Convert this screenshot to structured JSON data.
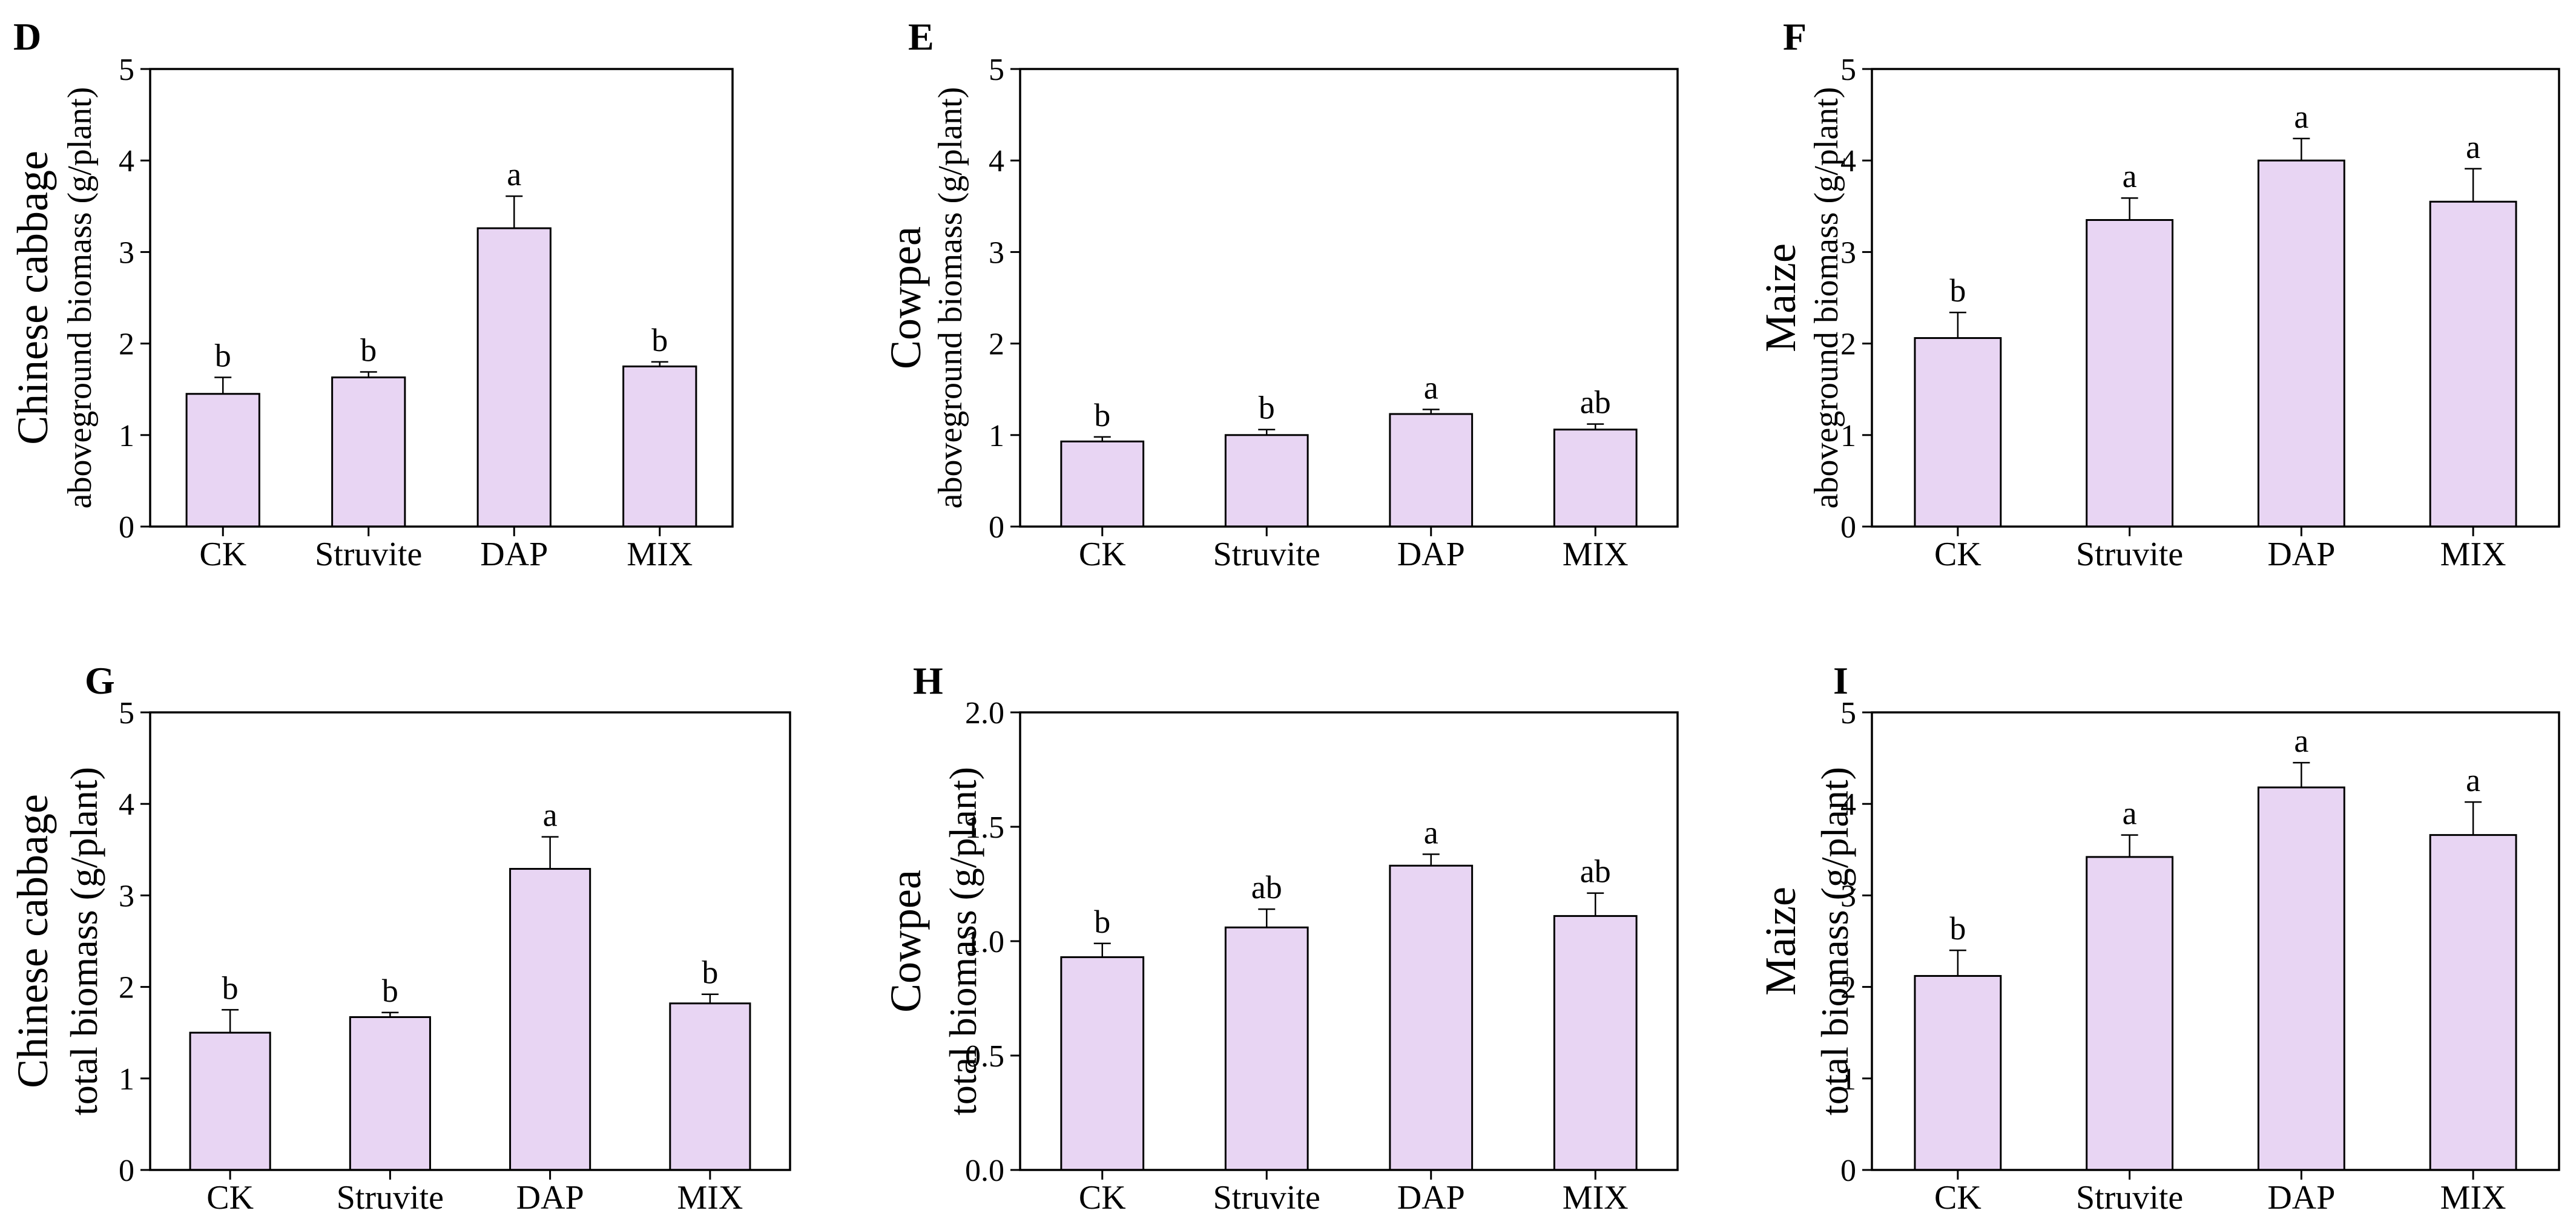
{
  "colors": {
    "bar_fill": "#e8d5f3",
    "stroke": "#000000",
    "background": "#ffffff"
  },
  "chart_data": [
    {
      "panel": "D",
      "type": "bar",
      "categories": [
        "CK",
        "Struvite",
        "DAP",
        "MIX"
      ],
      "values": [
        1.45,
        1.63,
        3.26,
        1.75
      ],
      "errors": [
        0.18,
        0.06,
        0.35,
        0.05
      ],
      "significance": [
        "b",
        "b",
        "a",
        "b"
      ],
      "ylabel_title": "Chinese cabbage",
      "ylabel": "aboveground biomass (g/plant)",
      "ylim": [
        0,
        5
      ],
      "yticks": [
        0,
        1,
        2,
        3,
        4,
        5
      ],
      "ytick_labels": [
        "0",
        "1",
        "2",
        "3",
        "4",
        "5"
      ]
    },
    {
      "panel": "E",
      "type": "bar",
      "categories": [
        "CK",
        "Struvite",
        "DAP",
        "MIX"
      ],
      "values": [
        0.93,
        1.0,
        1.23,
        1.06
      ],
      "errors": [
        0.05,
        0.06,
        0.05,
        0.06
      ],
      "significance": [
        "b",
        "b",
        "a",
        "ab"
      ],
      "ylabel_title": "Cowpea",
      "ylabel": "aboveground biomass (g/plant)",
      "ylim": [
        0,
        5
      ],
      "yticks": [
        0,
        1,
        2,
        3,
        4,
        5
      ],
      "ytick_labels": [
        "0",
        "1",
        "2",
        "3",
        "4",
        "5"
      ]
    },
    {
      "panel": "F",
      "type": "bar",
      "categories": [
        "CK",
        "Struvite",
        "DAP",
        "MIX"
      ],
      "values": [
        2.06,
        3.35,
        4.0,
        3.55
      ],
      "errors": [
        0.28,
        0.24,
        0.24,
        0.36
      ],
      "significance": [
        "b",
        "a",
        "a",
        "a"
      ],
      "ylabel_title": "Maize",
      "ylabel": "aboveground biomass (g/plant)",
      "ylim": [
        0,
        5
      ],
      "yticks": [
        0,
        1,
        2,
        3,
        4,
        5
      ],
      "ytick_labels": [
        "0",
        "1",
        "2",
        "3",
        "4",
        "5"
      ]
    },
    {
      "panel": "G",
      "type": "bar",
      "categories": [
        "CK",
        "Struvite",
        "DAP",
        "MIX"
      ],
      "values": [
        1.5,
        1.67,
        3.29,
        1.82
      ],
      "errors": [
        0.25,
        0.05,
        0.35,
        0.1
      ],
      "significance": [
        "b",
        "b",
        "a",
        "b"
      ],
      "ylabel_title": "Chinese cabbage",
      "ylabel": "total biomass (g/plant)",
      "ylim": [
        0,
        5
      ],
      "yticks": [
        0,
        1,
        2,
        3,
        4,
        5
      ],
      "ytick_labels": [
        "0",
        "1",
        "2",
        "3",
        "4",
        "5"
      ]
    },
    {
      "panel": "H",
      "type": "bar",
      "categories": [
        "CK",
        "Struvite",
        "DAP",
        "MIX"
      ],
      "values": [
        0.93,
        1.06,
        1.33,
        1.11
      ],
      "errors": [
        0.06,
        0.08,
        0.05,
        0.1
      ],
      "significance": [
        "b",
        "ab",
        "a",
        "ab"
      ],
      "ylabel_title": "Cowpea",
      "ylabel": "total biomass (g/plant)",
      "ylim": [
        0,
        2
      ],
      "yticks": [
        0,
        0.5,
        1,
        1.5,
        2
      ],
      "ytick_labels": [
        "0.0",
        "0.5",
        "1.0",
        "1.5",
        "2.0"
      ]
    },
    {
      "panel": "I",
      "type": "bar",
      "categories": [
        "CK",
        "Struvite",
        "DAP",
        "MIX"
      ],
      "values": [
        2.12,
        3.42,
        4.18,
        3.66
      ],
      "errors": [
        0.28,
        0.24,
        0.27,
        0.36
      ],
      "significance": [
        "b",
        "a",
        "a",
        "a"
      ],
      "ylabel_title": "Maize",
      "ylabel": "total biomass (g/plant)",
      "ylim": [
        0,
        5
      ],
      "yticks": [
        0,
        1,
        2,
        3,
        4,
        5
      ],
      "ytick_labels": [
        "0",
        "1",
        "2",
        "3",
        "4",
        "5"
      ]
    }
  ]
}
